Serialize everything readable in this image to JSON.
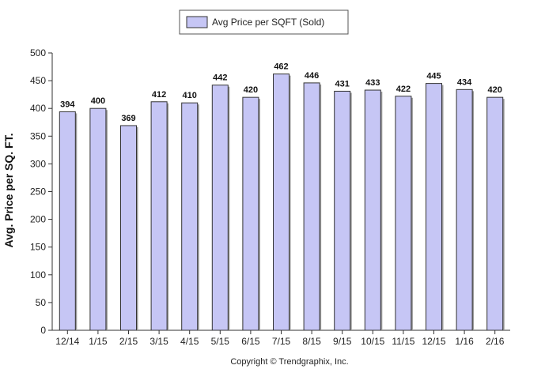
{
  "chart_data": {
    "type": "bar",
    "title": "",
    "xlabel": "",
    "ylabel": "Avg. Price per SQ. FT.",
    "categories": [
      "12/14",
      "1/15",
      "2/15",
      "3/15",
      "4/15",
      "5/15",
      "6/15",
      "7/15",
      "8/15",
      "9/15",
      "10/15",
      "11/15",
      "12/15",
      "1/16",
      "2/16"
    ],
    "series": [
      {
        "name": "Avg Price per SQFT (Sold)",
        "values": [
          394,
          400,
          369,
          412,
          410,
          442,
          420,
          462,
          446,
          431,
          433,
          422,
          445,
          434,
          420
        ],
        "color": "#c6c6f5"
      }
    ],
    "ylim": [
      0,
      500
    ],
    "yticks": [
      0,
      50,
      100,
      150,
      200,
      250,
      300,
      350,
      400,
      450,
      500
    ],
    "grid": false,
    "legend_position": "top-center",
    "data_labels": true
  },
  "footer": {
    "copyright": "Copyright © Trendgraphix, Inc."
  },
  "colors": {
    "bar_fill": "#c6c6f5",
    "bar_stroke": "#333333",
    "axis": "#333333"
  }
}
